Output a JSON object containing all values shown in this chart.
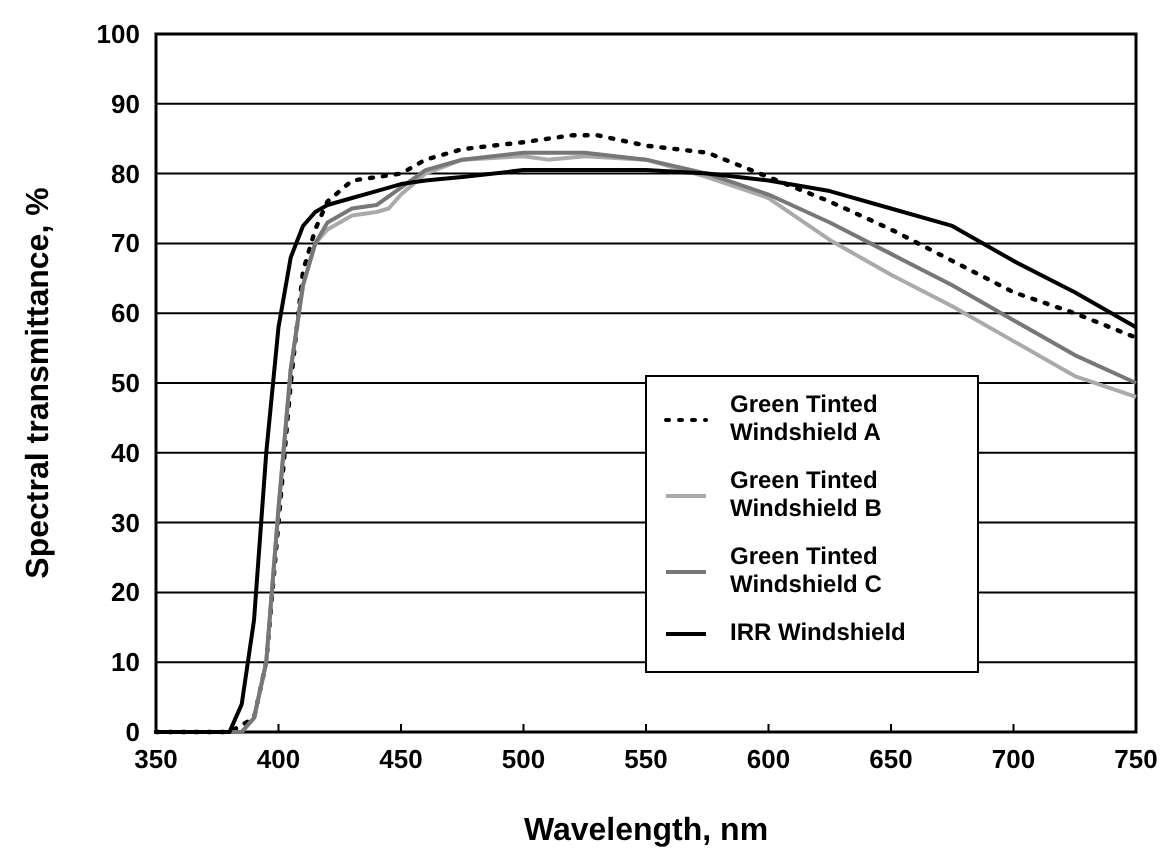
{
  "chart_data": {
    "type": "line",
    "xlabel": "Wavelength, nm",
    "ylabel": "Spectral transmittance, %",
    "xlim": [
      350,
      750
    ],
    "ylim": [
      0,
      100
    ],
    "xticks": [
      350,
      400,
      450,
      500,
      550,
      600,
      650,
      700,
      750
    ],
    "yticks": [
      0,
      10,
      20,
      30,
      40,
      50,
      60,
      70,
      80,
      90,
      100
    ],
    "grid": "y",
    "legend": "bottom right",
    "series": [
      {
        "name": "Green Tinted Windshield A",
        "color": "#000000",
        "line_style": "dotted",
        "x": [
          350,
          380,
          390,
          395,
          400,
          405,
          410,
          415,
          420,
          430,
          440,
          450,
          460,
          475,
          500,
          520,
          530,
          550,
          575,
          600,
          625,
          650,
          675,
          700,
          725,
          750
        ],
        "values": [
          0,
          0,
          2,
          10,
          30,
          50,
          66,
          72,
          76,
          79,
          79.5,
          80,
          82,
          83.5,
          84.5,
          85.5,
          85.5,
          84,
          83,
          79.5,
          76,
          72,
          67.5,
          63,
          60,
          56.5
        ]
      },
      {
        "name": "Green Tinted Windshield B",
        "color": "#aaaaaa",
        "line_style": "solid",
        "x": [
          350,
          385,
          390,
          395,
          400,
          405,
          410,
          415,
          420,
          430,
          440,
          445,
          450,
          460,
          475,
          500,
          510,
          525,
          550,
          575,
          600,
          625,
          650,
          675,
          700,
          725,
          750
        ],
        "values": [
          0,
          0,
          2,
          10,
          32,
          52,
          64,
          70,
          72,
          74,
          74.5,
          75,
          77,
          80,
          82,
          82.5,
          82,
          82.5,
          82,
          79.5,
          76.5,
          70.5,
          65.5,
          61,
          56,
          51,
          48
        ]
      },
      {
        "name": "Green Tinted Windshield C",
        "color": "#777777",
        "line_style": "solid",
        "x": [
          350,
          385,
          390,
          395,
          400,
          405,
          410,
          415,
          420,
          430,
          440,
          450,
          460,
          475,
          500,
          525,
          550,
          575,
          600,
          625,
          650,
          675,
          700,
          725,
          750
        ],
        "values": [
          0,
          0,
          2,
          10,
          32,
          52,
          64,
          70,
          73,
          75,
          75.5,
          78,
          80.5,
          82,
          83,
          83,
          82,
          80,
          77,
          73,
          68.5,
          64,
          59,
          54,
          50
        ]
      },
      {
        "name": "IRR Windshield",
        "color": "#000000",
        "line_style": "solid",
        "x": [
          350,
          380,
          385,
          390,
          395,
          400,
          405,
          410,
          415,
          420,
          430,
          440,
          450,
          460,
          475,
          500,
          525,
          550,
          575,
          600,
          625,
          650,
          675,
          700,
          725,
          750
        ],
        "values": [
          0,
          0,
          4,
          16,
          40,
          58,
          68,
          72.5,
          74.5,
          75.5,
          76.5,
          77.5,
          78.5,
          79,
          79.5,
          80.5,
          80.5,
          80.5,
          80,
          79,
          77.5,
          75,
          72.5,
          67.5,
          63,
          58
        ]
      }
    ]
  }
}
